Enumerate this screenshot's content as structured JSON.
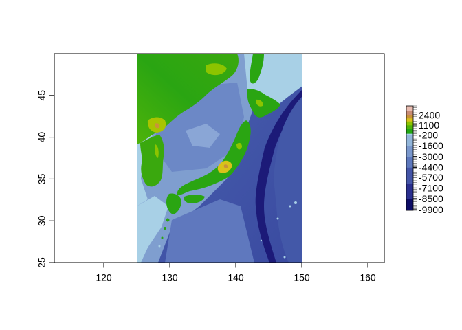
{
  "chart_data": {
    "type": "heatmap",
    "title": "",
    "xlabel": "",
    "ylabel": "",
    "xlim": [
      112.5,
      162.5
    ],
    "ylim": [
      25,
      50
    ],
    "raster_extent": {
      "xmin": 125,
      "xmax": 150,
      "ymin": 25,
      "ymax": 50
    },
    "x_ticks": [
      "120",
      "130",
      "140",
      "150",
      "160"
    ],
    "x_tick_values": [
      120,
      130,
      140,
      150,
      160
    ],
    "y_ticks": [
      "25",
      "30",
      "35",
      "40",
      "45"
    ],
    "y_tick_values": [
      25,
      30,
      35,
      40,
      45
    ],
    "legend": {
      "placement": "right",
      "labels": [
        "2400",
        "1100",
        "-200",
        "-1600",
        "-3000",
        "-4400",
        "-5700",
        "-7100",
        "-8500",
        "-9900"
      ],
      "values": [
        2400,
        1100,
        -200,
        -1600,
        -3000,
        -4400,
        -5700,
        -7100,
        -8500,
        -9900
      ],
      "range": [
        -10000,
        3600
      ],
      "colors": [
        {
          "value": -10000,
          "color": "#0d0c66"
        },
        {
          "value": -8500,
          "color": "#2a2f8f"
        },
        {
          "value": -6500,
          "color": "#4455a8"
        },
        {
          "value": -4400,
          "color": "#5d78bd"
        },
        {
          "value": -3000,
          "color": "#7a98cd"
        },
        {
          "value": -1600,
          "color": "#92b6da"
        },
        {
          "value": -200,
          "color": "#a8d0e6"
        },
        {
          "value": 0,
          "color": "#22a712"
        },
        {
          "value": 600,
          "color": "#4eb30a"
        },
        {
          "value": 1100,
          "color": "#8cc400"
        },
        {
          "value": 1600,
          "color": "#d9c21a"
        },
        {
          "value": 2000,
          "color": "#c9923a"
        },
        {
          "value": 2400,
          "color": "#c88c75"
        },
        {
          "value": 3000,
          "color": "#e8bcb0"
        },
        {
          "value": 3600,
          "color": "#f2f2f2"
        }
      ]
    }
  }
}
